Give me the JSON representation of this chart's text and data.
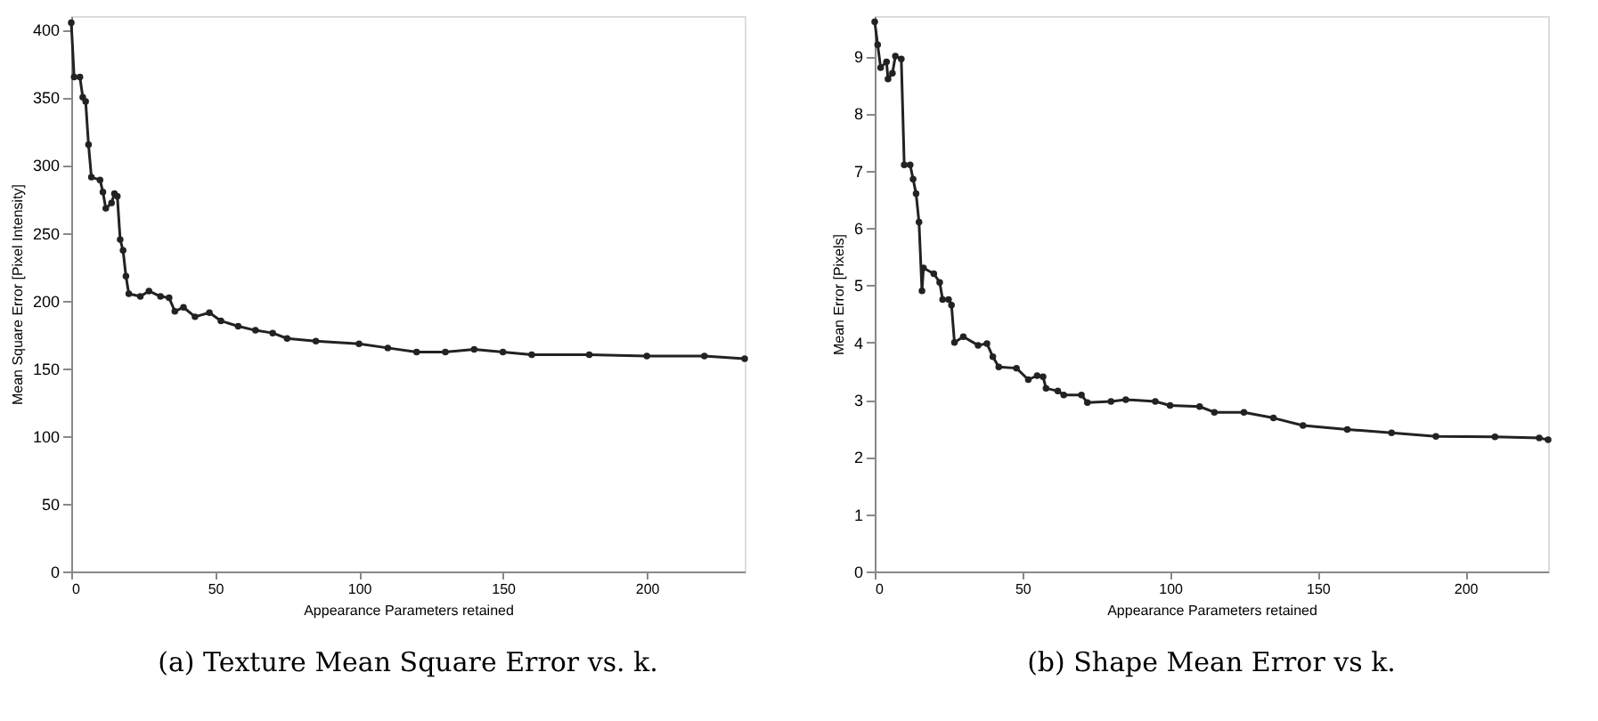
{
  "chart_data": [
    {
      "type": "line",
      "title": "(a) Texture Mean Square Error vs. k.",
      "xlabel": "Appearance Parameters retained",
      "ylabel": "Mean Square Error [Pixel Intensity]",
      "marker": "circle",
      "line_style": "solid",
      "grid": false,
      "xlim": [
        0,
        234
      ],
      "ylim": [
        0,
        410
      ],
      "xticks": [
        0,
        50,
        100,
        150,
        200
      ],
      "yticks": [
        0,
        50,
        100,
        150,
        200,
        250,
        300,
        350,
        400
      ],
      "series": [
        {
          "color": "#222222",
          "x": [
            0,
            1,
            3,
            4,
            5,
            6,
            7,
            10,
            11,
            12,
            14,
            15,
            16,
            17,
            18,
            19,
            20,
            24,
            27,
            31,
            34,
            36,
            39,
            43,
            48,
            52,
            58,
            64,
            70,
            75,
            85,
            100,
            110,
            120,
            130,
            140,
            150,
            160,
            180,
            200,
            220,
            234
          ],
          "values": [
            405,
            365,
            365,
            350,
            347,
            315,
            291,
            289,
            280,
            268,
            272,
            279,
            277,
            245,
            237,
            218,
            205,
            203,
            207,
            203,
            202,
            192,
            195,
            188,
            191,
            185,
            181,
            178,
            176,
            172,
            170,
            168,
            165,
            162,
            162,
            164,
            162,
            160,
            160,
            159,
            159,
            157
          ]
        }
      ]
    },
    {
      "type": "line",
      "title": "(b) Shape Mean Error vs k.",
      "xlabel": "Appearance Parameters retained",
      "ylabel": "Mean Error [Pixels]",
      "marker": "circle",
      "line_style": "solid",
      "grid": false,
      "xlim": [
        0,
        228
      ],
      "ylim": [
        0,
        9.7
      ],
      "xticks": [
        0,
        50,
        100,
        150,
        200
      ],
      "yticks": [
        0,
        1,
        2,
        3,
        4,
        5,
        6,
        7,
        8,
        9
      ],
      "series": [
        {
          "color": "#222222",
          "x": [
            0,
            1,
            2,
            4,
            4.5,
            6,
            7,
            9,
            10,
            12,
            13,
            14,
            15,
            16,
            16.5,
            20,
            22,
            23,
            25,
            26,
            27,
            30,
            35,
            38,
            40,
            42,
            48,
            52,
            55,
            57,
            58,
            62,
            64,
            70,
            72,
            80,
            85,
            95,
            100,
            110,
            115,
            125,
            135,
            145,
            160,
            175,
            190,
            210,
            225,
            228
          ],
          "values": [
            9.6,
            9.2,
            8.8,
            8.9,
            8.6,
            8.7,
            9.0,
            8.95,
            7.1,
            7.1,
            6.85,
            6.6,
            6.1,
            4.9,
            5.3,
            5.2,
            5.05,
            4.75,
            4.75,
            4.65,
            4.0,
            4.1,
            3.95,
            3.98,
            3.75,
            3.57,
            3.55,
            3.35,
            3.42,
            3.4,
            3.2,
            3.15,
            3.08,
            3.08,
            2.95,
            2.97,
            3.0,
            2.97,
            2.9,
            2.88,
            2.78,
            2.78,
            2.68,
            2.55,
            2.48,
            2.42,
            2.36,
            2.35,
            2.33,
            2.3
          ]
        }
      ]
    }
  ]
}
